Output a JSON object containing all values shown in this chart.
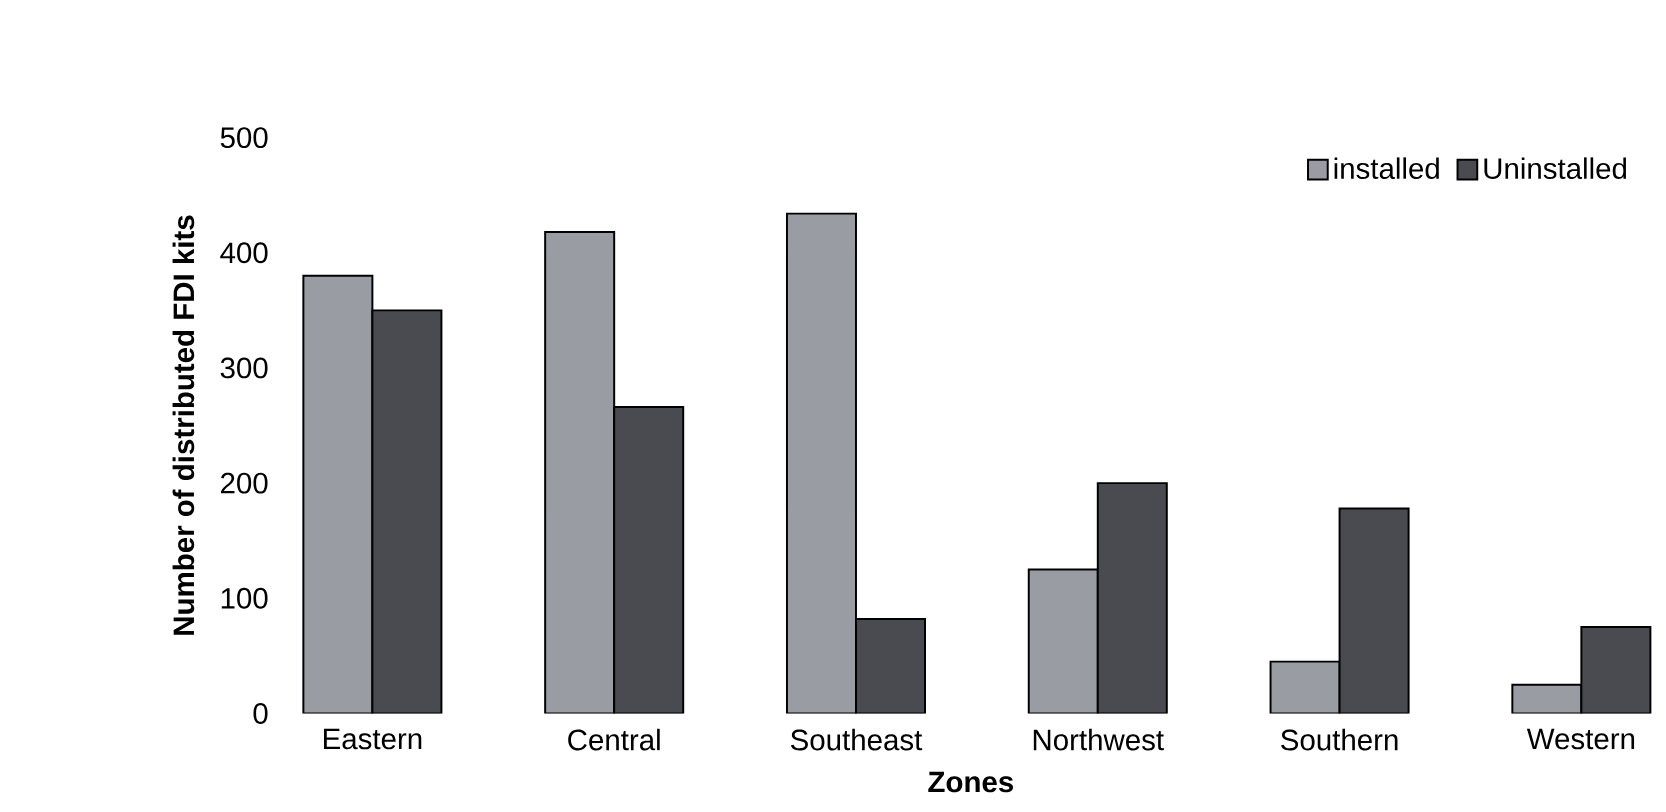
{
  "chart_data": {
    "type": "bar",
    "xlabel": "Zones",
    "ylabel": "Number of distributed FDI kits",
    "categories": [
      "Eastern",
      "Central",
      "Southeast",
      "Northwest",
      "Southern",
      "Western"
    ],
    "series": [
      {
        "name": "installed",
        "color": "#9a9ca4",
        "values": [
          380,
          418,
          434,
          125,
          45,
          25
        ]
      },
      {
        "name": "Uninstalled",
        "color": "#4a4b50",
        "values": [
          350,
          266,
          82,
          200,
          178,
          75
        ]
      }
    ],
    "ylim": [
      0,
      500
    ],
    "yticks": [
      0,
      100,
      200,
      300,
      400,
      500
    ],
    "grid": false,
    "legend": "top right"
  }
}
